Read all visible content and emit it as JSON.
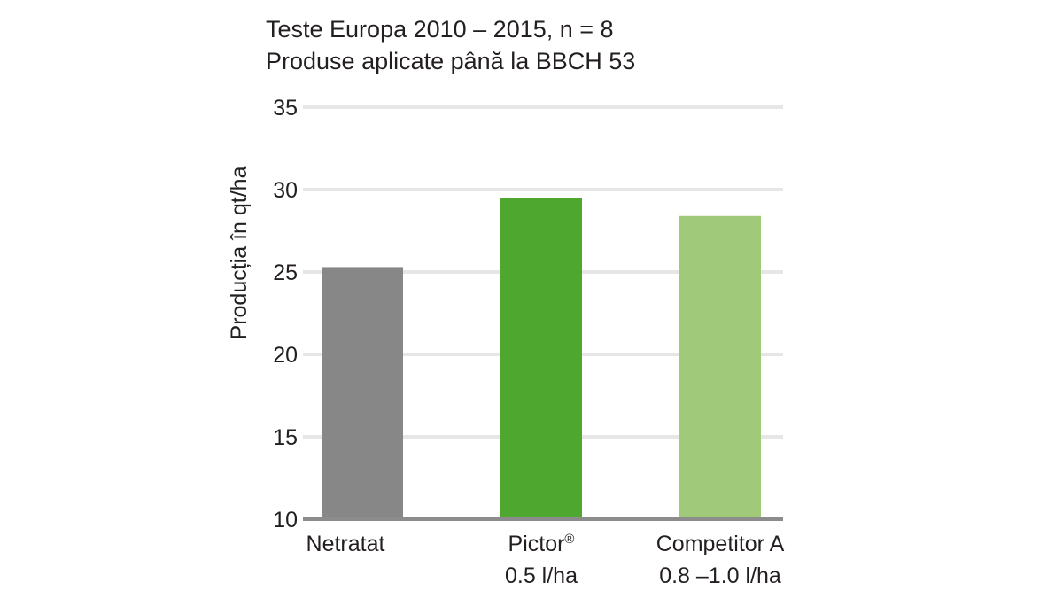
{
  "chart_data": {
    "type": "bar",
    "title_lines": [
      "Teste Europa 2010 – 2015, n = 8",
      "Produse aplicate până la BBCH 53"
    ],
    "ylabel": "Producția în qt/ha",
    "xlabel": "",
    "ylim": [
      10,
      35
    ],
    "yticks": [
      10,
      15,
      20,
      25,
      30,
      35
    ],
    "grid": true,
    "categories": [
      {
        "lines": [
          "Netratat"
        ],
        "superscript": ""
      },
      {
        "lines": [
          "Pictor",
          "0.5 l/ha"
        ],
        "superscript": "®"
      },
      {
        "lines": [
          "Competitor A",
          "0.8 –1.0 l/ha"
        ],
        "superscript": ""
      }
    ],
    "values": [
      25.3,
      29.5,
      28.4
    ],
    "colors": [
      "#878787",
      "#4ea72e",
      "#a1c97a"
    ]
  }
}
